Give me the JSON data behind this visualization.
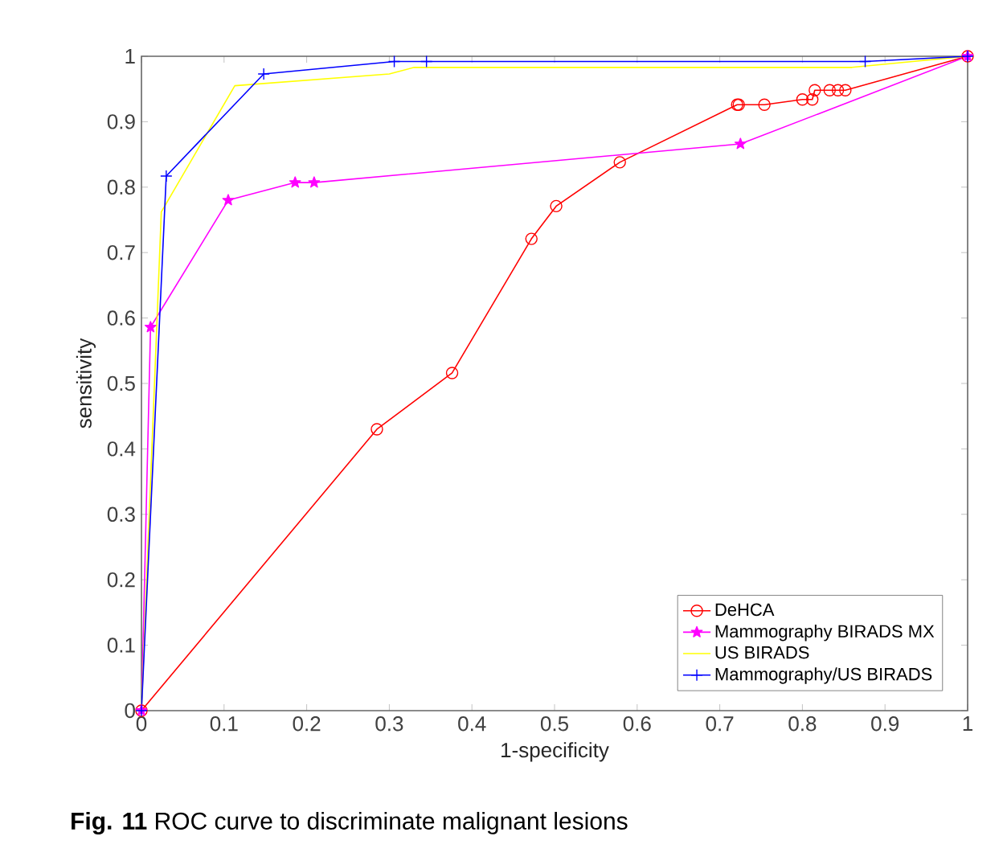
{
  "chart_data": {
    "type": "line",
    "xlabel": "1-specificity",
    "ylabel": "sensitivity",
    "xlim": [
      0,
      1
    ],
    "ylim": [
      0,
      1
    ],
    "xticks": [
      0,
      0.1,
      0.2,
      0.3,
      0.4,
      0.5,
      0.6,
      0.7,
      0.8,
      0.9,
      1
    ],
    "yticks": [
      0,
      0.1,
      0.2,
      0.3,
      0.4,
      0.5,
      0.6,
      0.7,
      0.8,
      0.9,
      1
    ],
    "grid": false,
    "legend": "bottom right",
    "line_style": "solid",
    "annotations": [
      "**Fig. 11** ROC curve to discriminate malignant lesions"
    ],
    "series": [
      {
        "name": "DeHCA",
        "color": "#ff0000",
        "marker": "circle",
        "x": [
          0,
          0.285,
          0.376,
          0.472,
          0.502,
          0.579,
          0.721,
          0.723,
          0.754,
          0.8,
          0.812,
          0.815,
          0.833,
          0.843,
          0.852,
          1
        ],
        "values": [
          0,
          0.43,
          0.516,
          0.721,
          0.771,
          0.838,
          0.926,
          0.926,
          0.926,
          0.934,
          0.934,
          0.948,
          0.948,
          0.948,
          0.948,
          1
        ]
      },
      {
        "name": "Mammography BIRADS MX",
        "color": "#ff00ff",
        "marker": "star",
        "x": [
          0,
          0.011,
          0.105,
          0.186,
          0.209,
          0.725,
          1
        ],
        "values": [
          0,
          0.586,
          0.78,
          0.807,
          0.807,
          0.866,
          1
        ]
      },
      {
        "name": "US BIRADS",
        "color": "#ffff00",
        "marker": "none",
        "x": [
          0,
          0.024,
          0.113,
          0.3,
          0.33,
          0.86,
          1
        ],
        "values": [
          0,
          0.762,
          0.955,
          0.973,
          0.983,
          0.983,
          1
        ]
      },
      {
        "name": "Mammography/US BIRADS",
        "color": "#0000ff",
        "marker": "cross",
        "x": [
          0,
          0.03,
          0.148,
          0.306,
          0.345,
          0.876,
          1
        ],
        "values": [
          0,
          0.817,
          0.973,
          0.992,
          0.992,
          0.992,
          1
        ]
      }
    ]
  }
}
